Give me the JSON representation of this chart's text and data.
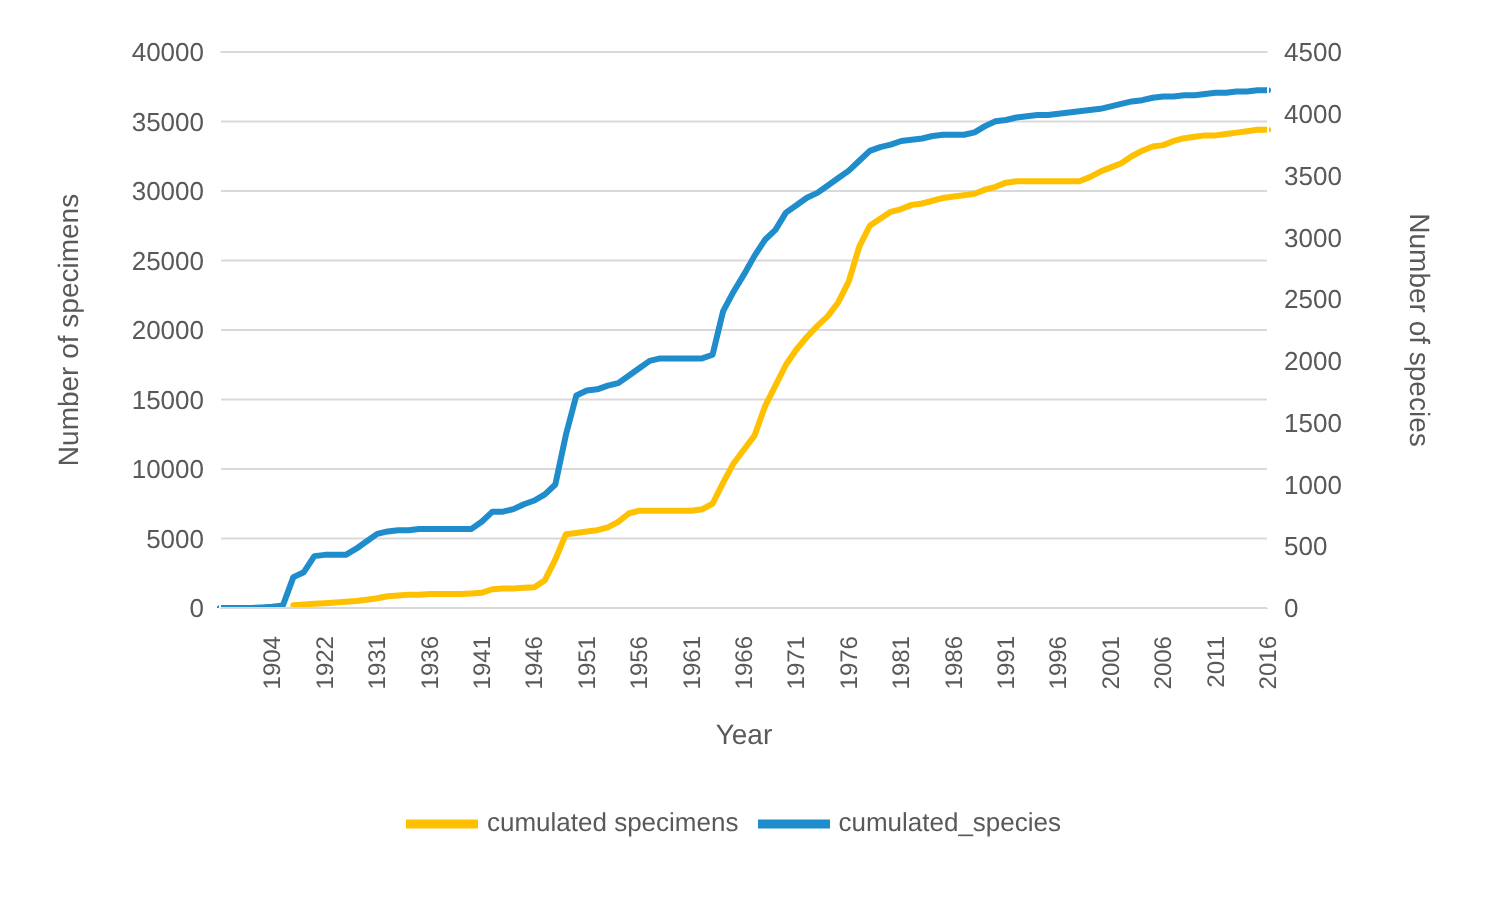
{
  "chart_data": {
    "type": "line",
    "xlabel": "Year",
    "ylabel": "Number of specimens",
    "y2label": "Number of species",
    "categories": [
      null,
      null,
      null,
      null,
      null,
      "1904",
      null,
      null,
      null,
      null,
      "1922",
      null,
      null,
      null,
      null,
      "1931",
      null,
      null,
      null,
      null,
      "1936",
      null,
      null,
      null,
      null,
      "1941",
      null,
      null,
      null,
      null,
      "1946",
      null,
      null,
      null,
      null,
      "1951",
      null,
      null,
      null,
      null,
      "1956",
      null,
      null,
      null,
      null,
      "1961",
      null,
      null,
      null,
      null,
      "1966",
      null,
      null,
      null,
      null,
      "1971",
      null,
      null,
      null,
      null,
      "1976",
      null,
      null,
      null,
      null,
      "1981",
      null,
      null,
      null,
      null,
      "1986",
      null,
      null,
      null,
      null,
      "1991",
      null,
      null,
      null,
      null,
      "1996",
      null,
      null,
      null,
      null,
      "2001",
      null,
      null,
      null,
      null,
      "2006",
      null,
      null,
      null,
      null,
      "2011",
      null,
      null,
      null,
      null,
      "2016"
    ],
    "series": [
      {
        "name": "cumulated specimens",
        "color": "#ffc000",
        "axis": "y",
        "values": [
          null,
          null,
          null,
          null,
          null,
          null,
          null,
          200,
          250,
          300,
          350,
          400,
          450,
          500,
          600,
          700,
          850,
          900,
          950,
          950,
          1000,
          1000,
          1000,
          1000,
          1050,
          1100,
          1350,
          1400,
          1400,
          1450,
          1500,
          2000,
          3500,
          5300,
          5400,
          5500,
          5600,
          5800,
          6200,
          6800,
          7000,
          7000,
          7000,
          7000,
          7000,
          7000,
          7100,
          7500,
          9000,
          10400,
          11400,
          12400,
          14500,
          16000,
          17500,
          18600,
          19500,
          20300,
          21000,
          22000,
          23500,
          26000,
          27500,
          28000,
          28500,
          28700,
          29000,
          29100,
          29300,
          29500,
          29600,
          29700,
          29800,
          30100,
          30300,
          30600,
          30700,
          30700,
          30700,
          30700,
          30700,
          30700,
          30700,
          31000,
          31400,
          31700,
          32000,
          32500,
          32900,
          33200,
          33300,
          33600,
          33800,
          33900,
          34000,
          34000,
          34100,
          34200,
          34300,
          34400,
          34400
        ]
      },
      {
        "name": "cumulated_species",
        "color": "#1f8ccc",
        "axis": "y2",
        "values": [
          0,
          0,
          0,
          0,
          5,
          10,
          20,
          250,
          290,
          420,
          430,
          430,
          430,
          480,
          540,
          600,
          620,
          630,
          630,
          640,
          640,
          640,
          640,
          640,
          640,
          700,
          780,
          780,
          800,
          840,
          870,
          920,
          1000,
          1400,
          1720,
          1760,
          1770,
          1800,
          1820,
          1880,
          1940,
          2000,
          2020,
          2020,
          2020,
          2020,
          2020,
          2050,
          2400,
          2560,
          2700,
          2850,
          2980,
          3060,
          3200,
          3260,
          3320,
          3360,
          3420,
          3480,
          3540,
          3620,
          3700,
          3730,
          3750,
          3780,
          3790,
          3800,
          3820,
          3830,
          3830,
          3830,
          3850,
          3900,
          3940,
          3950,
          3970,
          3980,
          3990,
          3990,
          4000,
          4010,
          4020,
          4030,
          4040,
          4060,
          4080,
          4100,
          4110,
          4130,
          4140,
          4140,
          4150,
          4150,
          4160,
          4170,
          4170,
          4180,
          4180,
          4190,
          4190
        ]
      }
    ],
    "ylim": [
      0,
      40000
    ],
    "yticks": [
      0,
      5000,
      10000,
      15000,
      20000,
      25000,
      30000,
      35000,
      40000
    ],
    "y2lim": [
      0,
      4500
    ],
    "y2ticks": [
      0,
      500,
      1000,
      1500,
      2000,
      2500,
      3000,
      3500,
      4000,
      4500
    ],
    "grid": "y",
    "legend": "bottom",
    "marker": "none",
    "line_style": "solid"
  }
}
